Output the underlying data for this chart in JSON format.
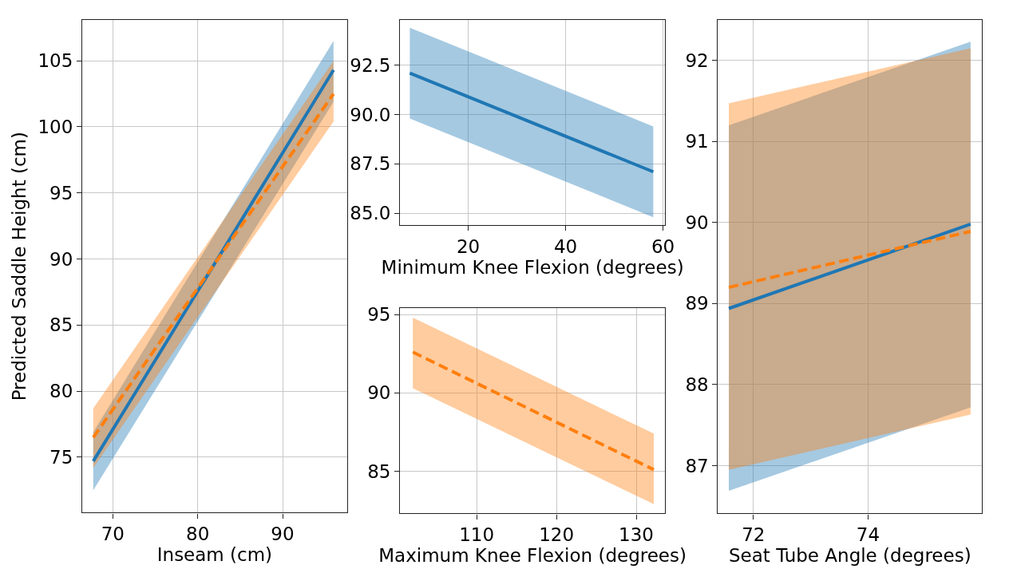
{
  "chart_data": [
    {
      "type": "line",
      "xlabel": "Inseam (cm)",
      "ylabel": "Predicted Saddle Height (cm)",
      "xlim": [
        66.4,
        97.6
      ],
      "ylim": [
        70.8,
        108.1
      ],
      "xticks": [
        70,
        80,
        90
      ],
      "yticks": [
        75,
        80,
        85,
        90,
        95,
        100,
        105
      ],
      "grid": true,
      "series": [
        {
          "color": "#1f77b4",
          "line_style": "solid",
          "x": [
            67.7,
            96.0
          ],
          "values": [
            74.7,
            104.3
          ],
          "lower": [
            72.5,
            101.9
          ],
          "upper": [
            76.9,
            106.5
          ]
        },
        {
          "color": "#ff7f0e",
          "line_style": "dashed",
          "x": [
            67.7,
            96.0
          ],
          "values": [
            76.5,
            102.5
          ],
          "lower": [
            74.2,
            100.4
          ],
          "upper": [
            78.7,
            105.0
          ]
        }
      ]
    },
    {
      "type": "line",
      "xlabel": "Minimum Knee Flexion (degrees)",
      "xlim": [
        6,
        60.4
      ],
      "ylim": [
        84.4,
        94.8
      ],
      "xticks": [
        20,
        40,
        60
      ],
      "yticks": [
        {
          "value": 85,
          "label": "85.0"
        },
        87.5,
        {
          "value": 90,
          "label": "90.0"
        },
        92.5
      ],
      "grid": true,
      "series": [
        {
          "color": "#1f77b4",
          "line_style": "solid",
          "x": [
            8,
            58
          ],
          "values": [
            92.1,
            87.1
          ],
          "lower": [
            89.8,
            84.8
          ],
          "upper": [
            94.4,
            89.4
          ]
        }
      ]
    },
    {
      "type": "line",
      "xlabel": "Maximum Knee Flexion (degrees)",
      "xlim": [
        100.4,
        133.6
      ],
      "ylim": [
        82.3,
        95.4
      ],
      "xticks": [
        110,
        120,
        130
      ],
      "yticks": [
        85,
        90,
        95
      ],
      "grid": true,
      "series": [
        {
          "color": "#ff7f0e",
          "line_style": "dashed",
          "x": [
            102,
            132.2
          ],
          "values": [
            92.6,
            85.1
          ],
          "lower": [
            90.3,
            82.9
          ],
          "upper": [
            94.8,
            87.4
          ]
        }
      ]
    },
    {
      "type": "line",
      "xlabel": "Seat Tube Angle (degrees)",
      "xlim": [
        71.38,
        75.99
      ],
      "ylim": [
        86.41,
        92.5
      ],
      "xticks": [
        72,
        74
      ],
      "yticks": [
        87,
        88,
        89,
        90,
        91,
        92
      ],
      "grid": true,
      "series": [
        {
          "color": "#1f77b4",
          "line_style": "solid",
          "x": [
            71.57,
            75.79
          ],
          "values": [
            88.94,
            89.98
          ],
          "lower": [
            86.69,
            87.72
          ],
          "upper": [
            91.2,
            92.23
          ]
        },
        {
          "color": "#ff7f0e",
          "line_style": "dashed",
          "x": [
            71.57,
            75.79
          ],
          "values": [
            89.2,
            89.89
          ],
          "lower": [
            86.95,
            87.63
          ],
          "upper": [
            91.47,
            92.15
          ]
        }
      ]
    }
  ]
}
